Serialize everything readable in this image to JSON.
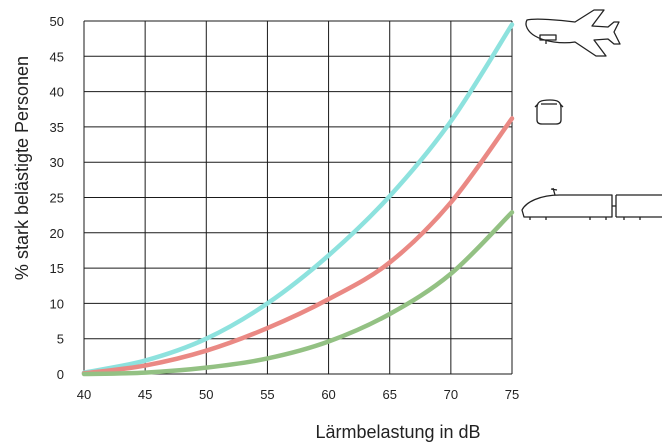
{
  "chart_data": {
    "type": "line",
    "title": "",
    "xlabel": "Lärmbelastung in dB",
    "ylabel": "% stark belästigte Personen",
    "xlim": [
      40,
      75
    ],
    "ylim": [
      0,
      50
    ],
    "xticks": [
      40,
      45,
      50,
      55,
      60,
      65,
      70,
      75
    ],
    "yticks": [
      0,
      5,
      10,
      15,
      20,
      25,
      30,
      35,
      40,
      45,
      50
    ],
    "grid": true,
    "legend": "icons at right edge: airplane, car, train",
    "x": [
      40,
      45,
      50,
      55,
      60,
      65,
      70,
      75
    ],
    "series": [
      {
        "icon": "airplane-icon",
        "color": "#8de2de",
        "values": [
          0.2,
          1.9,
          5.0,
          10.0,
          16.8,
          25.2,
          35.8,
          49.5
        ]
      },
      {
        "icon": "car-icon",
        "color": "#ea8984",
        "values": [
          0.1,
          1.2,
          3.3,
          6.5,
          10.6,
          15.8,
          24.3,
          36.2
        ]
      },
      {
        "icon": "train-icon",
        "color": "#93c183",
        "values": [
          0.0,
          0.2,
          0.9,
          2.2,
          4.6,
          8.5,
          14.2,
          22.9
        ]
      }
    ]
  }
}
